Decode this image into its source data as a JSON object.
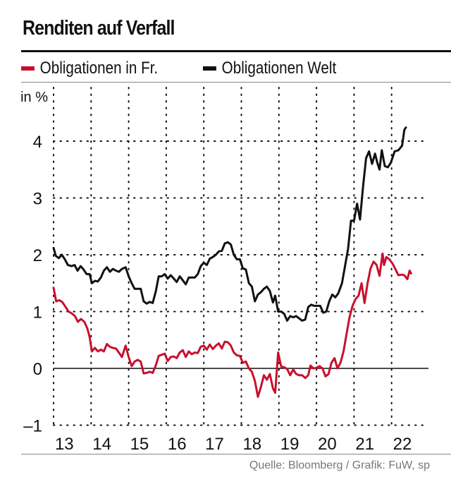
{
  "chart_data": {
    "type": "line",
    "title": "Renditen auf Verfall",
    "ylabel": "in %",
    "xlabel": "",
    "ylim": [
      -1,
      4.6
    ],
    "xlim": [
      2013.1,
      2022.9
    ],
    "yticks": [
      -1,
      0,
      1,
      2,
      3,
      4
    ],
    "ytick_labels": [
      "–1",
      "0",
      "1",
      "2",
      "3",
      "4"
    ],
    "xticks": [
      2013.5,
      2014.5,
      2015.5,
      2016.5,
      2017.5,
      2018.5,
      2019.5,
      2020.5,
      2021.5,
      2022.5
    ],
    "xtick_labels": [
      "13",
      "14",
      "15",
      "16",
      "17",
      "18",
      "19",
      "20",
      "21",
      "22"
    ],
    "xgrid": [
      2013.1,
      2014.1,
      2015.1,
      2016.1,
      2017.1,
      2018.1,
      2019.1,
      2020.1,
      2021.1,
      2022.1
    ],
    "grid": true,
    "grid_style": "dotted",
    "zero_line": true,
    "legend_position": "top-left",
    "series": [
      {
        "name": "Obligationen in Fr.",
        "color": "#c8102e",
        "points": [
          [
            2013.1,
            1.42
          ],
          [
            2013.17,
            1.18
          ],
          [
            2013.25,
            1.2
          ],
          [
            2013.33,
            1.17
          ],
          [
            2013.42,
            1.08
          ],
          [
            2013.5,
            1.0
          ],
          [
            2013.58,
            0.97
          ],
          [
            2013.67,
            0.92
          ],
          [
            2013.75,
            0.82
          ],
          [
            2013.83,
            0.87
          ],
          [
            2013.92,
            0.82
          ],
          [
            2014.0,
            0.7
          ],
          [
            2014.06,
            0.55
          ],
          [
            2014.12,
            0.3
          ],
          [
            2014.2,
            0.36
          ],
          [
            2014.28,
            0.3
          ],
          [
            2014.36,
            0.33
          ],
          [
            2014.44,
            0.3
          ],
          [
            2014.52,
            0.43
          ],
          [
            2014.6,
            0.38
          ],
          [
            2014.68,
            0.36
          ],
          [
            2014.76,
            0.35
          ],
          [
            2014.84,
            0.28
          ],
          [
            2014.92,
            0.2
          ],
          [
            2015.02,
            0.4
          ],
          [
            2015.1,
            0.2
          ],
          [
            2015.18,
            0.04
          ],
          [
            2015.26,
            0.12
          ],
          [
            2015.34,
            0.15
          ],
          [
            2015.42,
            0.12
          ],
          [
            2015.5,
            -0.09
          ],
          [
            2015.58,
            -0.08
          ],
          [
            2015.66,
            -0.06
          ],
          [
            2015.74,
            -0.08
          ],
          [
            2015.82,
            0.05
          ],
          [
            2015.9,
            0.22
          ],
          [
            2015.98,
            0.24
          ],
          [
            2016.06,
            0.26
          ],
          [
            2016.14,
            0.13
          ],
          [
            2016.22,
            0.2
          ],
          [
            2016.3,
            0.21
          ],
          [
            2016.38,
            0.18
          ],
          [
            2016.46,
            0.28
          ],
          [
            2016.54,
            0.32
          ],
          [
            2016.62,
            0.2
          ],
          [
            2016.7,
            0.3
          ],
          [
            2016.78,
            0.25
          ],
          [
            2016.86,
            0.28
          ],
          [
            2016.94,
            0.27
          ],
          [
            2017.02,
            0.38
          ],
          [
            2017.1,
            0.4
          ],
          [
            2017.18,
            0.33
          ],
          [
            2017.26,
            0.42
          ],
          [
            2017.34,
            0.34
          ],
          [
            2017.42,
            0.4
          ],
          [
            2017.5,
            0.44
          ],
          [
            2017.58,
            0.35
          ],
          [
            2017.66,
            0.47
          ],
          [
            2017.74,
            0.46
          ],
          [
            2017.82,
            0.4
          ],
          [
            2017.9,
            0.28
          ],
          [
            2017.98,
            0.23
          ],
          [
            2018.06,
            0.22
          ],
          [
            2018.14,
            0.1
          ],
          [
            2018.22,
            0.12
          ],
          [
            2018.3,
            0.0
          ],
          [
            2018.38,
            -0.06
          ],
          [
            2018.46,
            -0.22
          ],
          [
            2018.54,
            -0.5
          ],
          [
            2018.62,
            -0.33
          ],
          [
            2018.7,
            -0.12
          ],
          [
            2018.78,
            -0.2
          ],
          [
            2018.86,
            -0.1
          ],
          [
            2018.94,
            -0.35
          ],
          [
            2019.0,
            -0.43
          ],
          [
            2019.08,
            0.28
          ],
          [
            2019.16,
            0.03
          ],
          [
            2019.24,
            0.02
          ],
          [
            2019.32,
            -0.01
          ],
          [
            2019.4,
            -0.12
          ],
          [
            2019.48,
            -0.02
          ],
          [
            2019.56,
            -0.1
          ],
          [
            2019.64,
            -0.12
          ],
          [
            2019.72,
            -0.12
          ],
          [
            2019.8,
            -0.17
          ],
          [
            2019.88,
            -0.12
          ],
          [
            2019.94,
            0.05
          ],
          [
            2020.02,
            0.0
          ],
          [
            2020.1,
            0.01
          ],
          [
            2020.18,
            0.04
          ],
          [
            2020.26,
            0.0
          ],
          [
            2020.34,
            -0.14
          ],
          [
            2020.42,
            -0.1
          ],
          [
            2020.5,
            0.1
          ],
          [
            2020.58,
            0.18
          ],
          [
            2020.66,
            0.0
          ],
          [
            2020.74,
            0.1
          ],
          [
            2020.82,
            0.3
          ],
          [
            2020.9,
            0.6
          ],
          [
            2020.98,
            0.9
          ],
          [
            2021.06,
            1.1
          ],
          [
            2021.14,
            1.22
          ],
          [
            2021.22,
            1.28
          ],
          [
            2021.3,
            1.5
          ],
          [
            2021.38,
            1.15
          ],
          [
            2021.46,
            1.5
          ],
          [
            2021.54,
            1.76
          ],
          [
            2021.62,
            1.88
          ],
          [
            2021.7,
            1.82
          ],
          [
            2021.78,
            1.63
          ],
          [
            2021.86,
            2.02
          ],
          [
            2021.9,
            1.82
          ],
          [
            2021.96,
            1.96
          ],
          [
            2022.04,
            1.92
          ],
          [
            2022.12,
            1.85
          ],
          [
            2022.2,
            1.75
          ],
          [
            2022.28,
            1.64
          ],
          [
            2022.36,
            1.65
          ],
          [
            2022.44,
            1.64
          ],
          [
            2022.52,
            1.57
          ],
          [
            2022.58,
            1.72
          ],
          [
            2022.62,
            1.67
          ]
        ]
      },
      {
        "name": "Obligationen Welt",
        "color": "#111111",
        "points": [
          [
            2013.1,
            2.12
          ],
          [
            2013.16,
            1.98
          ],
          [
            2013.24,
            1.94
          ],
          [
            2013.32,
            2.0
          ],
          [
            2013.4,
            1.92
          ],
          [
            2013.48,
            1.82
          ],
          [
            2013.58,
            1.8
          ],
          [
            2013.66,
            1.82
          ],
          [
            2013.74,
            1.72
          ],
          [
            2013.82,
            1.8
          ],
          [
            2013.9,
            1.74
          ],
          [
            2013.98,
            1.66
          ],
          [
            2014.06,
            1.66
          ],
          [
            2014.12,
            1.5
          ],
          [
            2014.2,
            1.54
          ],
          [
            2014.28,
            1.53
          ],
          [
            2014.36,
            1.6
          ],
          [
            2014.44,
            1.72
          ],
          [
            2014.52,
            1.78
          ],
          [
            2014.6,
            1.7
          ],
          [
            2014.68,
            1.75
          ],
          [
            2014.76,
            1.72
          ],
          [
            2014.84,
            1.7
          ],
          [
            2014.92,
            1.75
          ],
          [
            2015.02,
            1.78
          ],
          [
            2015.1,
            1.62
          ],
          [
            2015.18,
            1.5
          ],
          [
            2015.26,
            1.4
          ],
          [
            2015.34,
            1.4
          ],
          [
            2015.42,
            1.4
          ],
          [
            2015.5,
            1.18
          ],
          [
            2015.58,
            1.14
          ],
          [
            2015.66,
            1.17
          ],
          [
            2015.74,
            1.15
          ],
          [
            2015.82,
            1.35
          ],
          [
            2015.9,
            1.62
          ],
          [
            2015.98,
            1.62
          ],
          [
            2016.06,
            1.66
          ],
          [
            2016.14,
            1.58
          ],
          [
            2016.22,
            1.64
          ],
          [
            2016.3,
            1.58
          ],
          [
            2016.38,
            1.52
          ],
          [
            2016.46,
            1.62
          ],
          [
            2016.54,
            1.55
          ],
          [
            2016.62,
            1.48
          ],
          [
            2016.7,
            1.6
          ],
          [
            2016.78,
            1.6
          ],
          [
            2016.86,
            1.6
          ],
          [
            2016.94,
            1.66
          ],
          [
            2017.02,
            1.8
          ],
          [
            2017.1,
            1.86
          ],
          [
            2017.18,
            1.82
          ],
          [
            2017.26,
            1.93
          ],
          [
            2017.34,
            1.96
          ],
          [
            2017.42,
            2.0
          ],
          [
            2017.5,
            2.06
          ],
          [
            2017.58,
            2.07
          ],
          [
            2017.66,
            2.2
          ],
          [
            2017.74,
            2.22
          ],
          [
            2017.82,
            2.18
          ],
          [
            2017.9,
            2.0
          ],
          [
            2017.98,
            1.92
          ],
          [
            2018.06,
            1.92
          ],
          [
            2018.14,
            1.76
          ],
          [
            2018.22,
            1.74
          ],
          [
            2018.3,
            1.5
          ],
          [
            2018.38,
            1.44
          ],
          [
            2018.46,
            1.18
          ],
          [
            2018.54,
            1.3
          ],
          [
            2018.62,
            1.34
          ],
          [
            2018.7,
            1.4
          ],
          [
            2018.78,
            1.44
          ],
          [
            2018.86,
            1.36
          ],
          [
            2018.94,
            1.16
          ],
          [
            2019.0,
            1.28
          ],
          [
            2019.08,
            1.0
          ],
          [
            2019.16,
            1.0
          ],
          [
            2019.24,
            0.96
          ],
          [
            2019.32,
            0.84
          ],
          [
            2019.4,
            0.92
          ],
          [
            2019.48,
            0.9
          ],
          [
            2019.56,
            0.92
          ],
          [
            2019.64,
            0.88
          ],
          [
            2019.72,
            0.84
          ],
          [
            2019.8,
            0.86
          ],
          [
            2019.88,
            1.08
          ],
          [
            2019.96,
            1.12
          ],
          [
            2020.04,
            1.1
          ],
          [
            2020.12,
            1.1
          ],
          [
            2020.2,
            1.1
          ],
          [
            2020.28,
            0.98
          ],
          [
            2020.36,
            1.0
          ],
          [
            2020.44,
            1.18
          ],
          [
            2020.52,
            1.3
          ],
          [
            2020.6,
            1.25
          ],
          [
            2020.68,
            1.32
          ],
          [
            2020.78,
            1.5
          ],
          [
            2020.86,
            1.8
          ],
          [
            2020.94,
            2.1
          ],
          [
            2021.02,
            2.6
          ],
          [
            2021.1,
            2.6
          ],
          [
            2021.18,
            2.9
          ],
          [
            2021.26,
            2.62
          ],
          [
            2021.34,
            3.2
          ],
          [
            2021.42,
            3.7
          ],
          [
            2021.5,
            3.82
          ],
          [
            2021.58,
            3.6
          ],
          [
            2021.66,
            3.78
          ],
          [
            2021.72,
            3.62
          ],
          [
            2021.78,
            3.5
          ],
          [
            2021.84,
            3.84
          ],
          [
            2021.92,
            3.56
          ],
          [
            2022.0,
            3.54
          ],
          [
            2022.08,
            3.62
          ],
          [
            2022.18,
            3.82
          ],
          [
            2022.28,
            3.84
          ],
          [
            2022.38,
            3.92
          ],
          [
            2022.44,
            4.2
          ],
          [
            2022.48,
            4.24
          ]
        ]
      }
    ]
  },
  "legend": [
    {
      "label": "Obligationen in Fr.",
      "color": "#c8102e"
    },
    {
      "label": "Obligationen Welt",
      "color": "#111111"
    }
  ],
  "source": "Quelle: Bloomberg / Grafik: FuW, sp"
}
